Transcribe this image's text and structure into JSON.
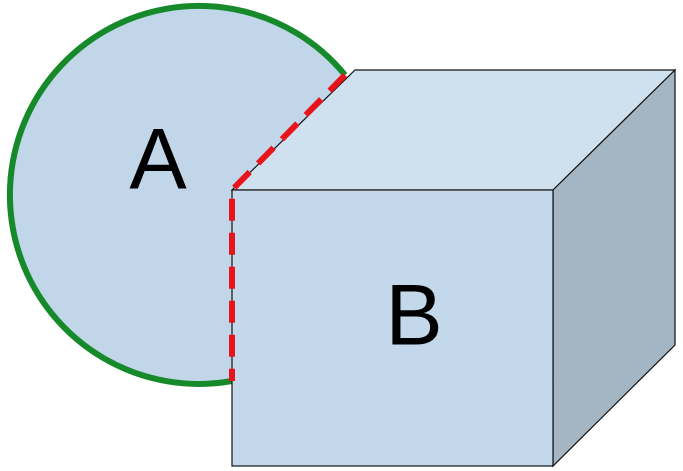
{
  "labels": {
    "a": "A",
    "b": "B"
  }
}
